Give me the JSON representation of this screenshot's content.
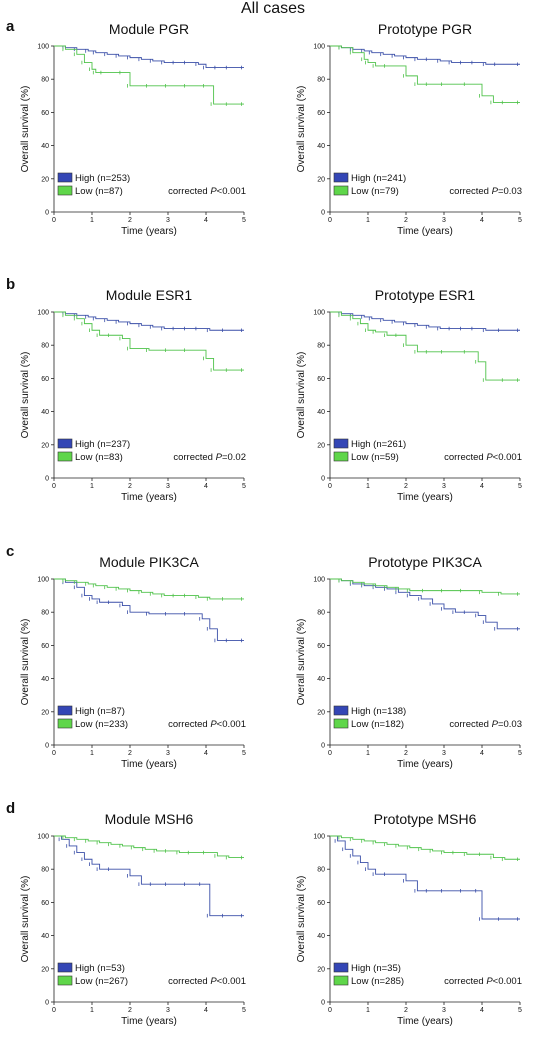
{
  "page_title": "All cases",
  "colors": {
    "high": "#3a4fa8",
    "high_fill": "#3446b5",
    "low": "#4fc24a",
    "low_fill": "#5fd64a",
    "axis": "#222222"
  },
  "panel_letters": [
    "a",
    "b",
    "c",
    "d"
  ],
  "chart_data": [
    {
      "type": "line",
      "row": "a",
      "title": "Module PGR",
      "xlabel": "Time (years)",
      "ylabel": "Overall survival (%)",
      "xlim": [
        0,
        5
      ],
      "ylim": [
        0,
        100
      ],
      "xticks": [
        "0",
        "1",
        "2",
        "3",
        "4",
        "5"
      ],
      "yticks": [
        "0",
        "20",
        "40",
        "60",
        "80",
        "100"
      ],
      "grid": false,
      "legend_placement": "bottom-left",
      "annotation": {
        "prefix": "corrected ",
        "p": "P",
        "rest": "<0.001"
      },
      "series": [
        {
          "name": "High (n=253)",
          "group": "high",
          "x": [
            0,
            0.3,
            0.6,
            0.9,
            1.1,
            1.4,
            1.7,
            2.0,
            2.3,
            2.6,
            2.9,
            3.2,
            3.5,
            3.8,
            4.0,
            4.3,
            4.6,
            5.0
          ],
          "y": [
            100,
            99,
            98,
            97,
            96,
            95,
            94,
            93,
            92,
            91,
            90,
            90,
            90,
            89,
            87,
            87,
            87,
            87
          ]
        },
        {
          "name": "Low (n=87)",
          "group": "low",
          "x": [
            0,
            0.3,
            0.6,
            0.8,
            1.0,
            1.1,
            1.3,
            1.8,
            2.0,
            2.5,
            3.0,
            3.5,
            4.0,
            4.2,
            4.6,
            5.0
          ],
          "y": [
            100,
            98,
            95,
            90,
            86,
            84,
            84,
            84,
            76,
            76,
            76,
            76,
            76,
            65,
            65,
            65
          ]
        }
      ]
    },
    {
      "type": "line",
      "row": "a",
      "title": "Prototype PGR",
      "xlabel": "Time (years)",
      "ylabel": "Overall survival (%)",
      "xlim": [
        0,
        5
      ],
      "ylim": [
        0,
        100
      ],
      "xticks": [
        "0",
        "1",
        "2",
        "3",
        "4",
        "5"
      ],
      "yticks": [
        "0",
        "20",
        "40",
        "60",
        "80",
        "100"
      ],
      "grid": false,
      "legend_placement": "bottom-left",
      "annotation": {
        "prefix": "corrected ",
        "p": "P",
        "rest": "=0.03"
      },
      "series": [
        {
          "name": "High (n=241)",
          "group": "high",
          "x": [
            0,
            0.3,
            0.6,
            0.9,
            1.1,
            1.4,
            1.7,
            2.0,
            2.3,
            2.6,
            2.9,
            3.2,
            3.5,
            3.8,
            4.1,
            4.4,
            5.0
          ],
          "y": [
            100,
            99,
            98,
            97,
            96,
            95,
            94,
            93,
            92,
            92,
            91,
            90,
            90,
            90,
            89,
            89,
            89
          ]
        },
        {
          "name": "Low (n=79)",
          "group": "low",
          "x": [
            0,
            0.3,
            0.6,
            0.9,
            1.0,
            1.2,
            1.5,
            2.0,
            2.3,
            2.6,
            3.0,
            3.6,
            4.0,
            4.3,
            4.6,
            5.0
          ],
          "y": [
            100,
            99,
            96,
            92,
            90,
            88,
            88,
            82,
            77,
            77,
            77,
            77,
            70,
            66,
            66,
            66
          ]
        }
      ]
    },
    {
      "type": "line",
      "row": "b",
      "title": "Module ESR1",
      "xlabel": "Time (years)",
      "ylabel": "Overall survival (%)",
      "xlim": [
        0,
        5
      ],
      "ylim": [
        0,
        100
      ],
      "xticks": [
        "0",
        "1",
        "2",
        "3",
        "4",
        "5"
      ],
      "yticks": [
        "0",
        "20",
        "40",
        "60",
        "80",
        "100"
      ],
      "grid": false,
      "legend_placement": "bottom-left",
      "annotation": {
        "prefix": "corrected ",
        "p": "P",
        "rest": "=0.02"
      },
      "series": [
        {
          "name": "High (n=237)",
          "group": "high",
          "x": [
            0,
            0.3,
            0.6,
            0.9,
            1.1,
            1.4,
            1.7,
            2.0,
            2.3,
            2.6,
            2.9,
            3.2,
            3.5,
            3.8,
            4.1,
            4.5,
            5.0
          ],
          "y": [
            100,
            99,
            98,
            97,
            96,
            95,
            94,
            93,
            92,
            91,
            90,
            90,
            90,
            90,
            89,
            89,
            89
          ]
        },
        {
          "name": "Low (n=83)",
          "group": "low",
          "x": [
            0,
            0.3,
            0.6,
            0.8,
            1.0,
            1.2,
            1.5,
            1.8,
            2.0,
            2.5,
            3.0,
            3.5,
            4.0,
            4.2,
            4.6,
            5.0
          ],
          "y": [
            100,
            98,
            96,
            93,
            89,
            86,
            86,
            84,
            78,
            77,
            77,
            77,
            72,
            65,
            65,
            65
          ]
        }
      ]
    },
    {
      "type": "line",
      "row": "b",
      "title": "Prototype ESR1",
      "xlabel": "Time (years)",
      "ylabel": "Overall survival (%)",
      "xlim": [
        0,
        5
      ],
      "ylim": [
        0,
        100
      ],
      "xticks": [
        "0",
        "1",
        "2",
        "3",
        "4",
        "5"
      ],
      "yticks": [
        "0",
        "20",
        "40",
        "60",
        "80",
        "100"
      ],
      "grid": false,
      "legend_placement": "bottom-left",
      "annotation": {
        "prefix": "corrected ",
        "p": "P",
        "rest": "<0.001"
      },
      "series": [
        {
          "name": "High (n=261)",
          "group": "high",
          "x": [
            0,
            0.3,
            0.6,
            0.9,
            1.1,
            1.4,
            1.7,
            2.0,
            2.3,
            2.6,
            2.9,
            3.2,
            3.5,
            3.8,
            4.1,
            4.5,
            5.0
          ],
          "y": [
            100,
            99,
            98,
            97,
            96,
            95,
            94,
            93,
            92,
            91,
            90,
            90,
            90,
            90,
            89,
            89,
            89
          ]
        },
        {
          "name": "Low (n=59)",
          "group": "low",
          "x": [
            0,
            0.3,
            0.6,
            0.8,
            1.0,
            1.2,
            1.5,
            1.8,
            2.0,
            2.3,
            2.6,
            3.0,
            3.6,
            3.9,
            4.1,
            4.6,
            5.0
          ],
          "y": [
            100,
            98,
            96,
            93,
            89,
            88,
            86,
            86,
            80,
            76,
            76,
            76,
            76,
            70,
            59,
            59,
            59
          ]
        }
      ]
    },
    {
      "type": "line",
      "row": "c",
      "title": "Module PIK3CA",
      "xlabel": "Time (years)",
      "ylabel": "Overall survival (%)",
      "xlim": [
        0,
        5
      ],
      "ylim": [
        0,
        100
      ],
      "xticks": [
        "0",
        "1",
        "2",
        "3",
        "4",
        "5"
      ],
      "yticks": [
        "0",
        "20",
        "40",
        "60",
        "80",
        "100"
      ],
      "grid": false,
      "legend_placement": "bottom-left",
      "annotation": {
        "prefix": "corrected ",
        "p": "P",
        "rest": "<0.001"
      },
      "series": [
        {
          "name": "High (n=87)",
          "group": "high",
          "x": [
            0,
            0.3,
            0.6,
            0.8,
            1.0,
            1.2,
            1.5,
            1.8,
            2.0,
            2.5,
            3.0,
            3.5,
            3.9,
            4.1,
            4.3,
            4.6,
            5.0
          ],
          "y": [
            100,
            98,
            95,
            90,
            88,
            86,
            86,
            84,
            80,
            79,
            79,
            79,
            76,
            70,
            63,
            63,
            63
          ]
        },
        {
          "name": "Low (n=233)",
          "group": "low",
          "x": [
            0,
            0.3,
            0.6,
            0.9,
            1.1,
            1.4,
            1.7,
            2.0,
            2.3,
            2.6,
            2.9,
            3.2,
            3.5,
            3.8,
            4.1,
            4.5,
            5.0
          ],
          "y": [
            100,
            99,
            98,
            97,
            96,
            95,
            94,
            93,
            92,
            91,
            90,
            90,
            90,
            89,
            88,
            88,
            88
          ]
        }
      ]
    },
    {
      "type": "line",
      "row": "c",
      "title": "Prototype PIK3CA",
      "xlabel": "Time (years)",
      "ylabel": "Overall survival (%)",
      "xlim": [
        0,
        5
      ],
      "ylim": [
        0,
        100
      ],
      "xticks": [
        "0",
        "1",
        "2",
        "3",
        "4",
        "5"
      ],
      "yticks": [
        "0",
        "20",
        "40",
        "60",
        "80",
        "100"
      ],
      "grid": false,
      "legend_placement": "bottom-left",
      "annotation": {
        "prefix": "corrected ",
        "p": "P",
        "rest": "=0.03"
      },
      "series": [
        {
          "name": "High (n=138)",
          "group": "high",
          "x": [
            0,
            0.3,
            0.6,
            0.9,
            1.2,
            1.5,
            1.8,
            2.1,
            2.4,
            2.7,
            3.0,
            3.3,
            3.6,
            3.9,
            4.1,
            4.4,
            5.0
          ],
          "y": [
            100,
            99,
            97,
            96,
            95,
            94,
            92,
            90,
            88,
            85,
            82,
            80,
            80,
            78,
            74,
            70,
            70
          ]
        },
        {
          "name": "Low (n=182)",
          "group": "low",
          "x": [
            0,
            0.3,
            0.6,
            0.9,
            1.2,
            1.5,
            1.8,
            2.1,
            2.5,
            3.0,
            3.5,
            4.0,
            4.5,
            5.0
          ],
          "y": [
            100,
            99,
            98,
            97,
            96,
            95,
            94,
            93,
            93,
            93,
            93,
            92,
            91,
            91
          ]
        }
      ]
    },
    {
      "type": "line",
      "row": "d",
      "title": "Module MSH6",
      "xlabel": "Time (years)",
      "ylabel": "Overall survival (%)",
      "xlim": [
        0,
        5
      ],
      "ylim": [
        0,
        100
      ],
      "xticks": [
        "0",
        "1",
        "2",
        "3",
        "4",
        "5"
      ],
      "yticks": [
        "0",
        "20",
        "40",
        "60",
        "80",
        "100"
      ],
      "grid": false,
      "legend_placement": "bottom-left",
      "annotation": {
        "prefix": "corrected ",
        "p": "P",
        "rest": "<0.001"
      },
      "series": [
        {
          "name": "High (n=53)",
          "group": "high",
          "x": [
            0,
            0.2,
            0.4,
            0.6,
            0.8,
            1.0,
            1.2,
            1.5,
            2.0,
            2.3,
            2.6,
            3.0,
            3.5,
            3.9,
            4.1,
            4.5,
            5.0
          ],
          "y": [
            100,
            98,
            94,
            90,
            86,
            83,
            80,
            80,
            76,
            71,
            71,
            71,
            71,
            71,
            52,
            52,
            52
          ]
        },
        {
          "name": "Low (n=267)",
          "group": "low",
          "x": [
            0,
            0.3,
            0.6,
            0.9,
            1.2,
            1.5,
            1.8,
            2.1,
            2.4,
            2.7,
            3.0,
            3.3,
            3.6,
            4.0,
            4.3,
            4.6,
            5.0
          ],
          "y": [
            100,
            99,
            98,
            97,
            96,
            95,
            94,
            93,
            92,
            91,
            91,
            90,
            90,
            90,
            88,
            87,
            87
          ]
        }
      ]
    },
    {
      "type": "line",
      "row": "d",
      "title": "Prototype MSH6",
      "xlabel": "Time (years)",
      "ylabel": "Overall survival (%)",
      "xlim": [
        0,
        5
      ],
      "ylim": [
        0,
        100
      ],
      "xticks": [
        "0",
        "1",
        "2",
        "3",
        "4",
        "5"
      ],
      "yticks": [
        "0",
        "20",
        "40",
        "60",
        "80",
        "100"
      ],
      "grid": false,
      "legend_placement": "bottom-left",
      "annotation": {
        "prefix": "corrected ",
        "p": "P",
        "rest": "<0.001"
      },
      "series": [
        {
          "name": "High (n=35)",
          "group": "high",
          "x": [
            0,
            0.2,
            0.4,
            0.6,
            0.8,
            1.0,
            1.2,
            1.5,
            2.0,
            2.3,
            2.6,
            3.0,
            3.5,
            3.9,
            4.0,
            4.5,
            5.0
          ],
          "y": [
            100,
            97,
            92,
            88,
            84,
            80,
            77,
            77,
            73,
            67,
            67,
            67,
            67,
            67,
            50,
            50,
            50
          ]
        },
        {
          "name": "Low (n=285)",
          "group": "low",
          "x": [
            0,
            0.3,
            0.6,
            0.9,
            1.2,
            1.5,
            1.8,
            2.1,
            2.4,
            2.7,
            3.0,
            3.3,
            3.6,
            4.0,
            4.3,
            4.6,
            5.0
          ],
          "y": [
            100,
            99,
            98,
            97,
            96,
            95,
            94,
            93,
            92,
            91,
            90,
            90,
            89,
            89,
            87,
            86,
            86
          ]
        }
      ]
    }
  ]
}
